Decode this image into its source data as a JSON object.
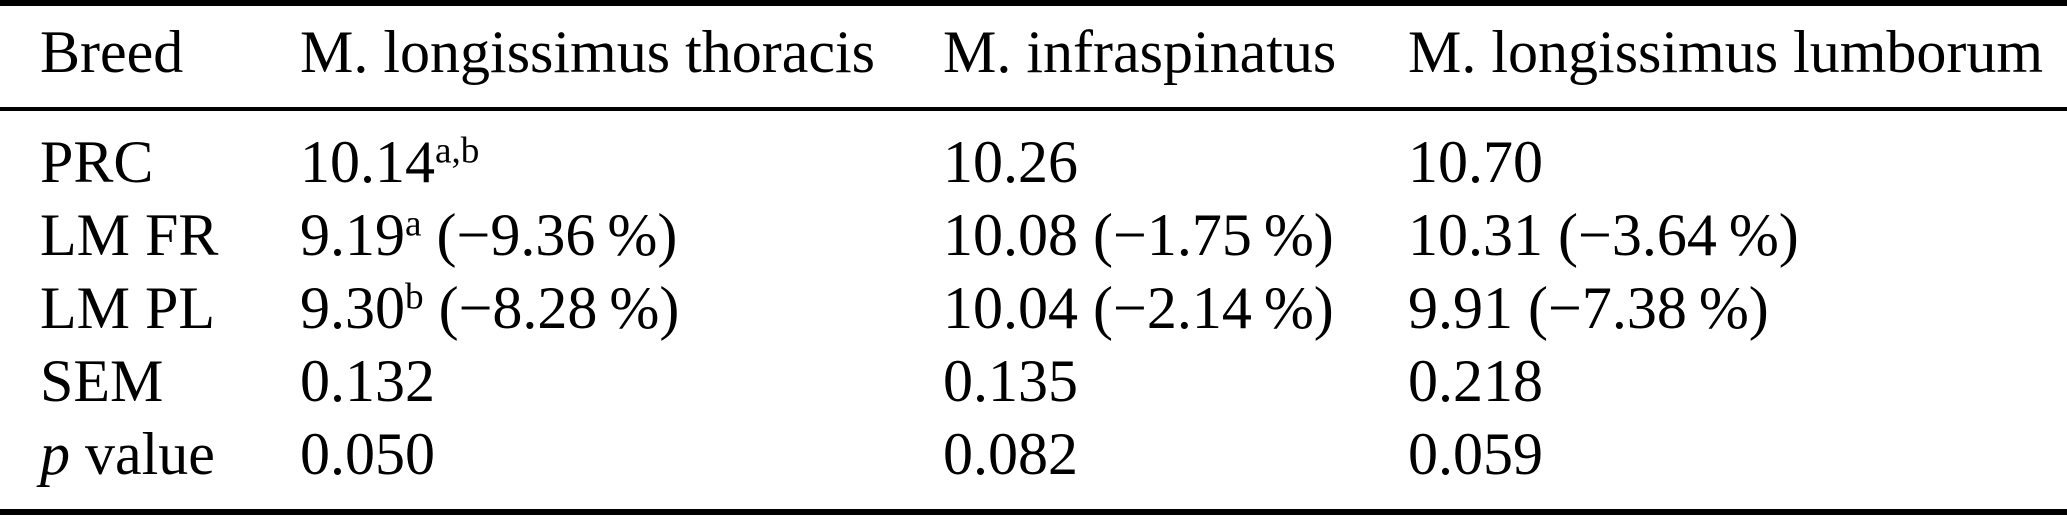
{
  "table": {
    "columns": [
      {
        "label": "Breed"
      },
      {
        "label": "M. longissimus thoracis"
      },
      {
        "label": "M. infraspinatus"
      },
      {
        "label": "M. longissimus lumborum"
      }
    ],
    "rows": [
      {
        "label_italic": "",
        "label": "PRC",
        "cells": [
          {
            "v": "10.14",
            "sup": "a,b",
            "rest": ""
          },
          {
            "v": "10.26",
            "sup": "",
            "rest": ""
          },
          {
            "v": "10.70",
            "sup": "",
            "rest": ""
          }
        ]
      },
      {
        "label_italic": "",
        "label": "LM FR",
        "cells": [
          {
            "v": "9.19",
            "sup": "a",
            "rest": " (−9.36 %)"
          },
          {
            "v": "10.08",
            "sup": "",
            "rest": " (−1.75 %)"
          },
          {
            "v": "10.31",
            "sup": "",
            "rest": " (−3.64 %)"
          }
        ]
      },
      {
        "label_italic": "",
        "label": "LM PL",
        "cells": [
          {
            "v": "9.30",
            "sup": "b",
            "rest": " (−8.28 %)"
          },
          {
            "v": "10.04",
            "sup": "",
            "rest": " (−2.14 %)"
          },
          {
            "v": "9.91",
            "sup": "",
            "rest": " (−7.38 %)"
          }
        ]
      },
      {
        "label_italic": "",
        "label": "SEM",
        "cells": [
          {
            "v": "0.132",
            "sup": "",
            "rest": ""
          },
          {
            "v": "0.135",
            "sup": "",
            "rest": ""
          },
          {
            "v": "0.218",
            "sup": "",
            "rest": ""
          }
        ]
      },
      {
        "label_italic": "p",
        "label": " value",
        "cells": [
          {
            "v": "0.050",
            "sup": "",
            "rest": ""
          },
          {
            "v": "0.082",
            "sup": "",
            "rest": ""
          },
          {
            "v": "0.059",
            "sup": "",
            "rest": ""
          }
        ]
      }
    ]
  }
}
